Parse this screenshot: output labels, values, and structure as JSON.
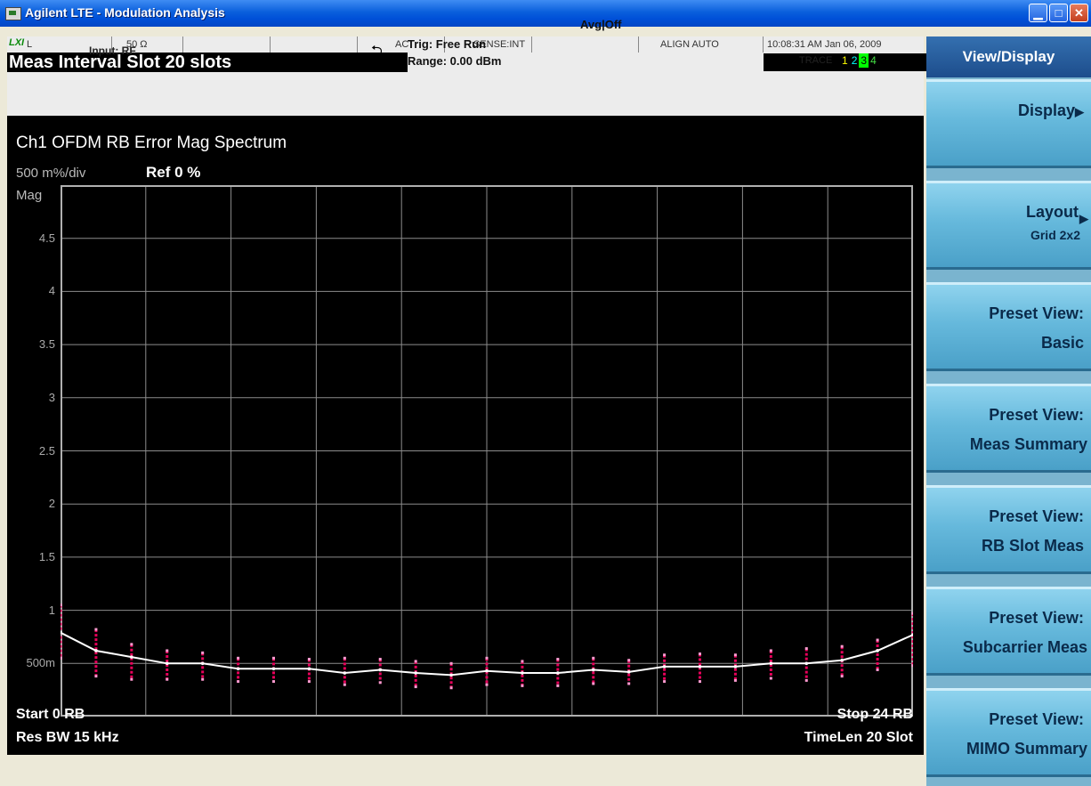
{
  "window": {
    "title": "Agilent LTE - Modulation Analysis"
  },
  "status_bar": {
    "lxi": "LXI",
    "cells": [
      "L",
      "50 Ω",
      "",
      "",
      "AC",
      "SENSE:INT",
      "",
      "ALIGN AUTO",
      "10:08:31 AM Jan 06, 2009"
    ],
    "meas_interval": "Meas Interval Slot  20 slots",
    "input": "Input: RF",
    "trig": "Trig: Free Run",
    "range": "Range: 0.00 dBm",
    "avg": "Avg|Off",
    "trace_label": "TRACE",
    "trace_numbers": [
      "1",
      "2",
      "3",
      "4"
    ]
  },
  "screen": {
    "title": "Ch1 OFDM RB Error Mag Spectrum",
    "scale": "500 m%/div",
    "ref": "Ref 0 %",
    "y_unit": "Mag",
    "start": "Start 0  RB",
    "res_bw": "Res BW 15 kHz",
    "stop": "Stop 24  RB",
    "timelen": "TimeLen 20  Slot"
  },
  "chart_data": {
    "type": "line",
    "title": "Ch1 OFDM RB Error Mag Spectrum",
    "xlabel": "RB",
    "ylabel": "Mag",
    "xlim": [
      0,
      24
    ],
    "ylim": [
      0,
      5
    ],
    "y_ticks": [
      "4.5",
      "4",
      "3.5",
      "3",
      "2.5",
      "2",
      "1.5",
      "1",
      "500m"
    ],
    "grid": true,
    "x": [
      0,
      1,
      2,
      3,
      4,
      5,
      6,
      7,
      8,
      9,
      10,
      11,
      12,
      13,
      14,
      15,
      16,
      17,
      18,
      19,
      20,
      21,
      22,
      23,
      24
    ],
    "series": [
      {
        "values": [
          0.79,
          0.62,
          0.56,
          0.5,
          0.5,
          0.45,
          0.45,
          0.45,
          0.41,
          0.44,
          0.41,
          0.39,
          0.43,
          0.41,
          0.41,
          0.44,
          0.42,
          0.47,
          0.47,
          0.47,
          0.5,
          0.5,
          0.53,
          0.62,
          0.77
        ],
        "err_low": [
          0.55,
          0.38,
          0.35,
          0.35,
          0.35,
          0.33,
          0.33,
          0.33,
          0.3,
          0.32,
          0.28,
          0.27,
          0.3,
          0.29,
          0.29,
          0.31,
          0.31,
          0.33,
          0.33,
          0.34,
          0.36,
          0.34,
          0.38,
          0.44,
          0.48
        ],
        "err_high": [
          1.05,
          0.82,
          0.68,
          0.62,
          0.6,
          0.55,
          0.55,
          0.54,
          0.55,
          0.54,
          0.52,
          0.5,
          0.55,
          0.52,
          0.54,
          0.55,
          0.53,
          0.58,
          0.59,
          0.58,
          0.62,
          0.64,
          0.66,
          0.72,
          0.97
        ]
      }
    ]
  },
  "colors": {
    "trace": "#ffffff",
    "points": "#e8005a",
    "grid": "#8c8c8c",
    "trace3_active": "#00ff00"
  },
  "softkeys": {
    "header": "View/Display",
    "items": [
      {
        "line1": "Display",
        "line2": "",
        "has_arrow": true
      },
      {
        "line1": "Layout",
        "line2": "Grid 2x2",
        "has_arrow": true
      },
      {
        "line1": "Preset View:",
        "line2": "Basic"
      },
      {
        "line1": "Preset View:",
        "line2": "Meas Summary"
      },
      {
        "line1": "Preset View:",
        "line2": "RB Slot Meas"
      },
      {
        "line1": "Preset View:",
        "line2": "Subcarrier Meas"
      },
      {
        "line1": "Preset View:",
        "line2": "MIMO Summary"
      }
    ]
  }
}
